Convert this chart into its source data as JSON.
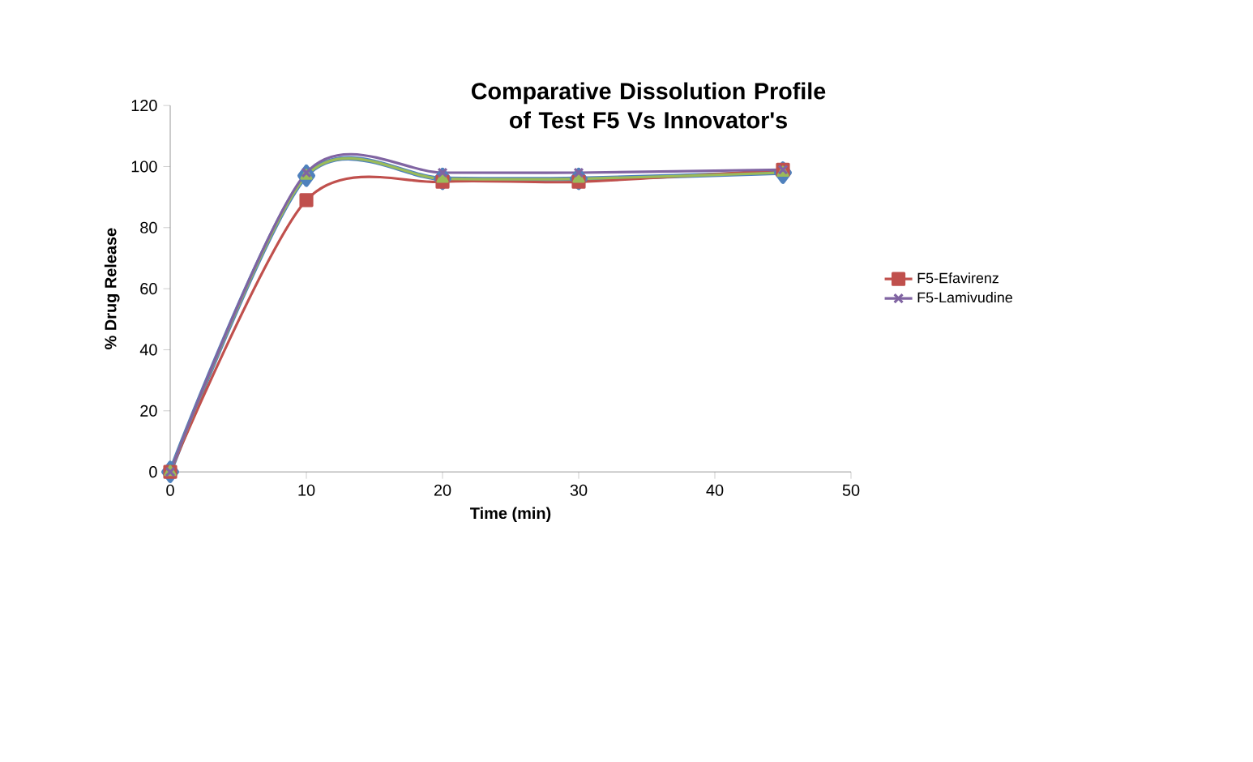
{
  "chart_data": {
    "type": "line",
    "title": "Comparative Dissolution Profile of Test F5 Vs Innovator's",
    "xlabel": "Time (min)",
    "ylabel": "% Drug Release",
    "x": [
      0,
      10,
      20,
      30,
      45
    ],
    "xlim": [
      0,
      50
    ],
    "xticks": [
      0,
      10,
      20,
      30,
      40,
      50
    ],
    "ylim": [
      0,
      120
    ],
    "yticks": [
      0,
      20,
      40,
      60,
      80,
      100,
      120
    ],
    "grid": false,
    "legend": "right",
    "series": [
      {
        "color": "#4f81bd",
        "marker": "diamond",
        "values": [
          0,
          97,
          96,
          96,
          98
        ]
      },
      {
        "name": "F5-Efavirenz",
        "color": "#c0504d",
        "marker": "square",
        "values": [
          0,
          89,
          95,
          95,
          99
        ]
      },
      {
        "color": "#9bbb59",
        "marker": "triangle",
        "values": [
          0,
          97,
          96,
          96,
          98
        ]
      },
      {
        "name": "F5-Lamivudine",
        "color": "#8064a2",
        "marker": "cross",
        "values": [
          0,
          98,
          98,
          98,
          99
        ]
      }
    ]
  }
}
